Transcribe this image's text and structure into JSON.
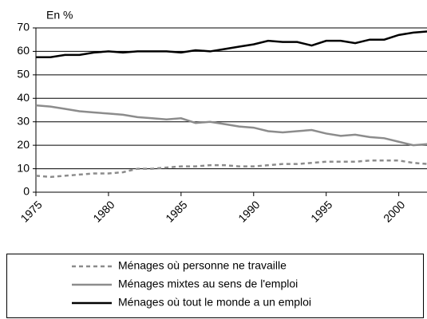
{
  "chart_data": {
    "type": "line",
    "y_label": "En  %",
    "x": [
      1975,
      1976,
      1977,
      1978,
      1979,
      1980,
      1981,
      1982,
      1983,
      1984,
      1985,
      1986,
      1987,
      1988,
      1989,
      1990,
      1991,
      1992,
      1993,
      1994,
      1995,
      1996,
      1997,
      1998,
      1999,
      2000,
      2001,
      2002
    ],
    "series": [
      {
        "name": "Ménages où personne ne travaille",
        "color": "#8c8c8c",
        "dashed": true,
        "values": [
          7,
          6.5,
          7,
          7.5,
          8,
          8,
          8.5,
          10,
          10,
          10.5,
          11,
          11,
          11.5,
          11.5,
          11,
          11,
          11.5,
          12,
          12,
          12.5,
          13,
          13,
          13,
          13.5,
          13.5,
          13.5,
          12.5,
          12
        ]
      },
      {
        "name": "Ménages mixtes au sens de l'emploi",
        "color": "#8c8c8c",
        "dashed": false,
        "values": [
          37,
          36.5,
          35.5,
          34.5,
          34,
          33.5,
          33,
          32,
          31.5,
          31,
          31.5,
          29.5,
          30,
          29,
          28,
          27.5,
          26,
          25.5,
          26,
          26.5,
          25,
          24,
          24.5,
          23.5,
          23,
          21.5,
          20,
          20.5
        ]
      },
      {
        "name": "Ménages où tout le monde a un emploi",
        "color": "#000000",
        "dashed": false,
        "values": [
          57.5,
          57.5,
          58.5,
          58.5,
          59.5,
          60,
          59.5,
          60,
          60,
          60,
          59.5,
          60.5,
          60,
          61,
          62,
          63,
          64.5,
          64,
          64,
          62.5,
          64.5,
          64.5,
          63.5,
          65,
          65,
          67,
          68,
          68.5
        ]
      }
    ],
    "xlim": [
      1975,
      2002
    ],
    "xticks": [
      1975,
      1980,
      1985,
      1990,
      1995,
      2000
    ],
    "ylim": [
      0,
      70
    ],
    "yticks": [
      0,
      10,
      20,
      30,
      40,
      50,
      60,
      70
    ],
    "grid": true
  }
}
